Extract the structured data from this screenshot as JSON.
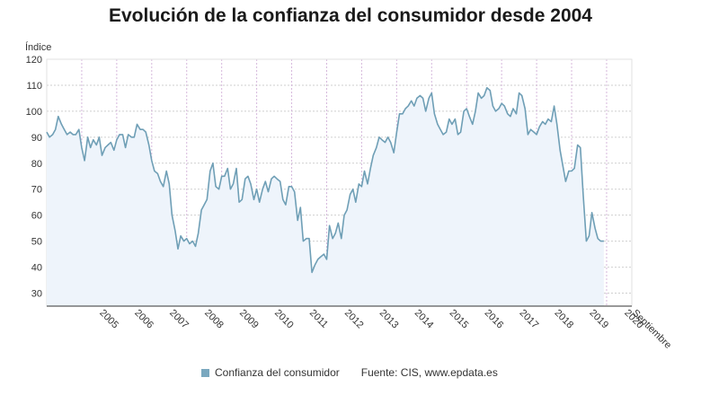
{
  "chart_data": {
    "type": "area",
    "title": "Evolución de la confianza del consumidor desde 2004",
    "ylabel": "Índice",
    "xlabel": "",
    "ylim": [
      25,
      120
    ],
    "yticks": [
      30,
      40,
      50,
      60,
      70,
      80,
      90,
      100,
      110,
      120
    ],
    "xlim": [
      2004.0,
      2020.72
    ],
    "x_tick_labels": [
      "2005",
      "2006",
      "2007",
      "2008",
      "2009",
      "2010",
      "2011",
      "2012",
      "2013",
      "2014",
      "2015",
      "2016",
      "2017",
      "2018",
      "2019",
      "2020",
      "Septiembre"
    ],
    "grid": true,
    "legend_position": "bottom",
    "series": [
      {
        "name": "Confianza del consumidor",
        "color": "#6f9fb6",
        "points": [
          [
            2004.0,
            92
          ],
          [
            2004.08,
            90
          ],
          [
            2004.17,
            91
          ],
          [
            2004.25,
            93
          ],
          [
            2004.33,
            98
          ],
          [
            2004.42,
            95
          ],
          [
            2004.5,
            93
          ],
          [
            2004.58,
            91
          ],
          [
            2004.67,
            92
          ],
          [
            2004.75,
            91
          ],
          [
            2004.83,
            91
          ],
          [
            2004.92,
            93
          ],
          [
            2005.0,
            86
          ],
          [
            2005.08,
            81
          ],
          [
            2005.17,
            90
          ],
          [
            2005.25,
            86
          ],
          [
            2005.33,
            89
          ],
          [
            2005.42,
            87
          ],
          [
            2005.5,
            90
          ],
          [
            2005.58,
            83
          ],
          [
            2005.67,
            86
          ],
          [
            2005.75,
            87
          ],
          [
            2005.83,
            88
          ],
          [
            2005.92,
            85
          ],
          [
            2006.0,
            89
          ],
          [
            2006.08,
            91
          ],
          [
            2006.17,
            91
          ],
          [
            2006.25,
            86
          ],
          [
            2006.33,
            91
          ],
          [
            2006.42,
            90
          ],
          [
            2006.5,
            90
          ],
          [
            2006.58,
            95
          ],
          [
            2006.67,
            93
          ],
          [
            2006.75,
            93
          ],
          [
            2006.83,
            92
          ],
          [
            2006.92,
            87
          ],
          [
            2007.0,
            81
          ],
          [
            2007.08,
            77
          ],
          [
            2007.17,
            76
          ],
          [
            2007.25,
            73
          ],
          [
            2007.33,
            71
          ],
          [
            2007.42,
            77
          ],
          [
            2007.5,
            72
          ],
          [
            2007.58,
            60
          ],
          [
            2007.67,
            54
          ],
          [
            2007.75,
            47
          ],
          [
            2007.83,
            52
          ],
          [
            2007.92,
            50
          ],
          [
            2008.0,
            51
          ],
          [
            2008.08,
            49
          ],
          [
            2008.17,
            50
          ],
          [
            2008.25,
            48
          ],
          [
            2008.33,
            53
          ],
          [
            2008.42,
            62
          ],
          [
            2008.5,
            64
          ],
          [
            2008.58,
            66
          ],
          [
            2008.67,
            77
          ],
          [
            2008.75,
            80
          ],
          [
            2008.83,
            71
          ],
          [
            2008.92,
            70
          ],
          [
            2009.0,
            75
          ],
          [
            2009.08,
            75
          ],
          [
            2009.17,
            78
          ],
          [
            2009.25,
            70
          ],
          [
            2009.33,
            72
          ],
          [
            2009.42,
            78
          ],
          [
            2009.5,
            65
          ],
          [
            2009.58,
            66
          ],
          [
            2009.67,
            74
          ],
          [
            2009.75,
            75
          ],
          [
            2009.83,
            72
          ],
          [
            2009.92,
            66
          ],
          [
            2010.0,
            70
          ],
          [
            2010.08,
            65
          ],
          [
            2010.17,
            70
          ],
          [
            2010.25,
            73
          ],
          [
            2010.33,
            69
          ],
          [
            2010.42,
            74
          ],
          [
            2010.5,
            75
          ],
          [
            2010.58,
            74
          ],
          [
            2010.67,
            73
          ],
          [
            2010.75,
            66
          ],
          [
            2010.83,
            64
          ],
          [
            2010.92,
            71
          ],
          [
            2011.0,
            71
          ],
          [
            2011.08,
            69
          ],
          [
            2011.17,
            58
          ],
          [
            2011.25,
            63
          ],
          [
            2011.33,
            50
          ],
          [
            2011.42,
            51
          ],
          [
            2011.5,
            51
          ],
          [
            2011.58,
            38
          ],
          [
            2011.67,
            41
          ],
          [
            2011.75,
            43
          ],
          [
            2011.83,
            44
          ],
          [
            2011.92,
            45
          ],
          [
            2012.0,
            43
          ],
          [
            2012.08,
            56
          ],
          [
            2012.17,
            51
          ],
          [
            2012.25,
            53
          ],
          [
            2012.33,
            57
          ],
          [
            2012.42,
            51
          ],
          [
            2012.5,
            60
          ],
          [
            2012.58,
            62
          ],
          [
            2012.67,
            68
          ],
          [
            2012.75,
            70
          ],
          [
            2012.83,
            65
          ],
          [
            2012.92,
            72
          ],
          [
            2013.0,
            71
          ],
          [
            2013.08,
            77
          ],
          [
            2013.17,
            72
          ],
          [
            2013.25,
            78
          ],
          [
            2013.33,
            83
          ],
          [
            2013.42,
            86
          ],
          [
            2013.5,
            90
          ],
          [
            2013.58,
            89
          ],
          [
            2013.67,
            88
          ],
          [
            2013.75,
            90
          ],
          [
            2013.83,
            88
          ],
          [
            2013.92,
            84
          ],
          [
            2014.0,
            92
          ],
          [
            2014.08,
            99
          ],
          [
            2014.17,
            99
          ],
          [
            2014.25,
            101
          ],
          [
            2014.33,
            102
          ],
          [
            2014.42,
            104
          ],
          [
            2014.5,
            102
          ],
          [
            2014.58,
            105
          ],
          [
            2014.67,
            106
          ],
          [
            2014.75,
            105
          ],
          [
            2014.83,
            100
          ],
          [
            2014.92,
            105
          ],
          [
            2015.0,
            107
          ],
          [
            2015.08,
            99
          ],
          [
            2015.17,
            95
          ],
          [
            2015.25,
            93
          ],
          [
            2015.33,
            91
          ],
          [
            2015.42,
            92
          ],
          [
            2015.5,
            97
          ],
          [
            2015.58,
            95
          ],
          [
            2015.67,
            97
          ],
          [
            2015.75,
            91
          ],
          [
            2015.83,
            92
          ],
          [
            2015.92,
            100
          ],
          [
            2016.0,
            101
          ],
          [
            2016.08,
            98
          ],
          [
            2016.17,
            95
          ],
          [
            2016.25,
            100
          ],
          [
            2016.33,
            107
          ],
          [
            2016.42,
            105
          ],
          [
            2016.5,
            106
          ],
          [
            2016.58,
            109
          ],
          [
            2016.67,
            108
          ],
          [
            2016.75,
            102
          ],
          [
            2016.83,
            100
          ],
          [
            2016.92,
            101
          ],
          [
            2017.0,
            103
          ],
          [
            2017.08,
            102
          ],
          [
            2017.17,
            99
          ],
          [
            2017.25,
            98
          ],
          [
            2017.33,
            101
          ],
          [
            2017.42,
            99
          ],
          [
            2017.5,
            107
          ],
          [
            2017.58,
            106
          ],
          [
            2017.67,
            101
          ],
          [
            2017.75,
            91
          ],
          [
            2017.83,
            93
          ],
          [
            2017.92,
            92
          ],
          [
            2018.0,
            91
          ],
          [
            2018.08,
            94
          ],
          [
            2018.17,
            96
          ],
          [
            2018.25,
            95
          ],
          [
            2018.33,
            97
          ],
          [
            2018.42,
            96
          ],
          [
            2018.5,
            102
          ],
          [
            2018.58,
            95
          ],
          [
            2018.67,
            85
          ],
          [
            2018.75,
            79
          ],
          [
            2018.83,
            73
          ],
          [
            2018.92,
            77
          ],
          [
            2019.0,
            77
          ],
          [
            2019.08,
            78
          ],
          [
            2019.17,
            87
          ],
          [
            2019.25,
            86
          ],
          [
            2019.33,
            68
          ],
          [
            2019.42,
            50
          ],
          [
            2019.5,
            52
          ],
          [
            2019.58,
            61
          ],
          [
            2019.67,
            55
          ],
          [
            2019.75,
            51
          ],
          [
            2019.83,
            50
          ],
          [
            2019.92,
            50
          ]
        ]
      }
    ]
  },
  "legend": {
    "label": "Confianza del consumidor",
    "source": "Fuente: CIS, www.epdata.es"
  }
}
